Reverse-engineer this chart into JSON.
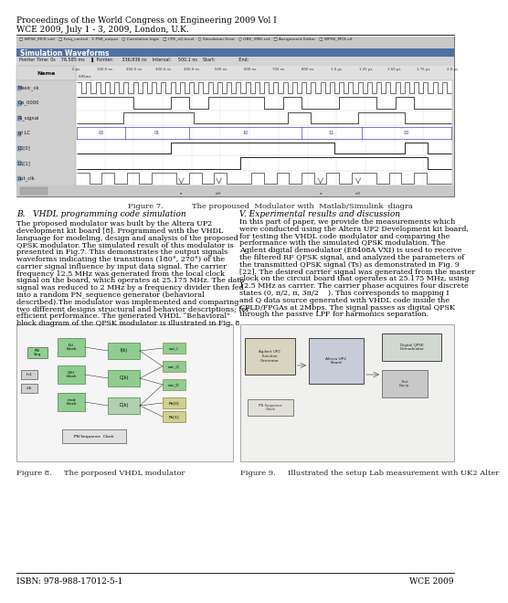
{
  "header_line1": "Proceedings of the World Congress on Engineering 2009 Vol I",
  "header_line2": "WCE 2009, July 1 - 3, 2009, London, U.K.",
  "footer_left": "ISBN: 978-988-17012-5-1",
  "footer_right": "WCE 2009",
  "fig7_caption_left": "Figure 7.",
  "fig7_caption_right": "The propoused  Modulator with  Matlab/Simulink  diagra",
  "fig8_caption_left": "Figure 8.",
  "fig8_caption_right": "The porposed VHDL modulator",
  "fig9_caption_left": "Figure 9.",
  "fig9_caption_right": "Illustrated the setup Lab measurement with UK2 Alter",
  "section_B_title": "B.   VHDL programming code simulation",
  "section_V_title": "V. Experimental results and discussion",
  "section_B_lines": [
    "The proposed modulator was built by the Altera UP2",
    "development kit board [8]. Programmed with the VHDL",
    "language for modeling, design and analysis of the proposed",
    "QPSK modulator. The simulated result of this modulator is",
    "presented in Fig.7. This demonstrates the output signals",
    "waveforms indicating the transitions (180°, 270°) of the",
    "carrier signal influence by input data signal. The carrier",
    "frequency 12.5 MHz was generated from the local clock",
    "signal on the board, which operates at 25.175 MHz. The data",
    "signal was reduced to 2 MHz by a frequency divider then fed",
    "into a random PN_sequence generator (behavioral",
    "described).The modulator was implemented and comparing",
    "two different designs structural and behavior descriptions; for",
    "efficient performance. The generated VHDL “Behavioral”",
    "block diagram of the QPSK modulator is illustrated in Fig. 8"
  ],
  "section_V_lines": [
    "In this part of paper, we provide the measurements which",
    "were conducted using the Altera UP2 Development kit board,",
    "for testing the VHDL code modulator and comparing the",
    "performance with the simulated QPSK modulation. The",
    "Agilent digital demodulator (E8408A VXI) is used to receive",
    "the filtered RF QPSK signal, and analyzed the parameters of",
    "the transmitted QPSK signal (Ts) as demonstrated in Fig. 9",
    "[22]. The desired carrier signal was generated from the master",
    "clock on the circuit board that operates at 25.175 MHz, using",
    "12.5 MHz as carrier. The carrier phase acquires four discrete",
    "states (0, π/2, π, 3π/2    ). This corresponds to mapping I",
    "and Q data source generated with VHDL code inside the",
    "CPLD/FPGAs at 2Mbps. The signal passes as digital QPSK",
    "through the passive LPF for harmonics separation."
  ],
  "bg_color": "#ffffff",
  "text_color": "#000000",
  "font_size_header": 6.5,
  "font_size_body": 5.8,
  "font_size_section_title": 6.5,
  "font_size_caption": 6.0,
  "font_size_footer": 6.5,
  "sim_signal_names": [
    "Masic_ck",
    "Dρ_0000",
    "Ri_signal",
    "gl LC",
    "LS[0]",
    "LS[1]",
    "out_clk"
  ]
}
